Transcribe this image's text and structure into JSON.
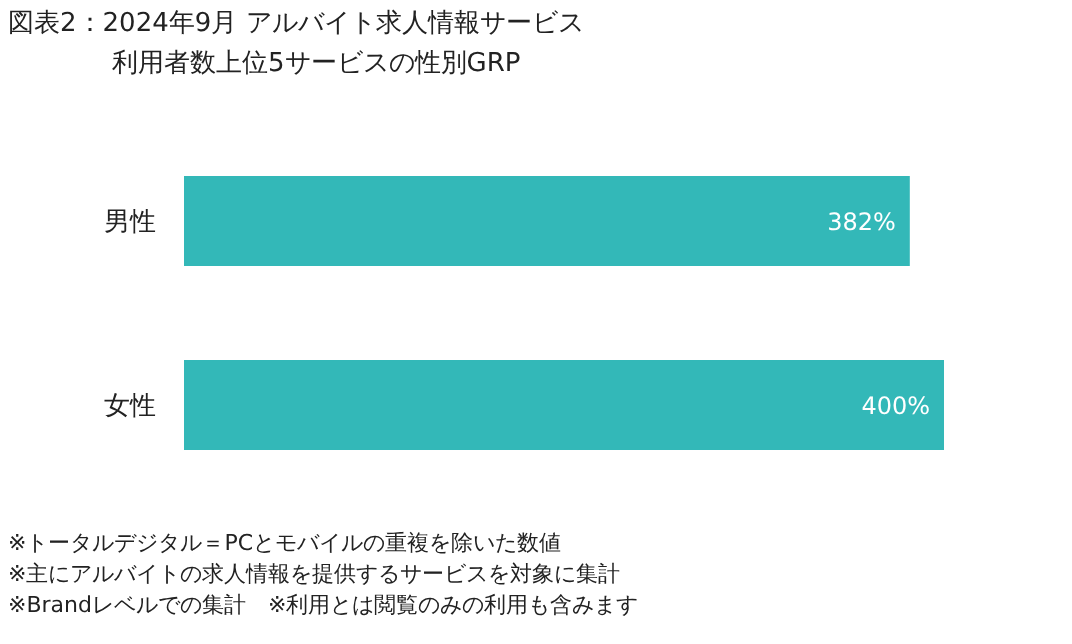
{
  "chart_data": {
    "type": "bar",
    "orientation": "horizontal",
    "title": "図表2：2024年9月 アルバイト求人情報サービス",
    "subtitle": "利用者数上位5サービスの性別GRP",
    "categories": [
      "男性",
      "女性"
    ],
    "values": [
      382,
      400
    ],
    "value_labels": [
      "382%",
      "400%"
    ],
    "color": "#33b8b8",
    "tick_labels": "y",
    "annotations": [
      "※トータルデジタル＝PCとモバイルの重複を除いた数値",
      "※主にアルバイトの求人情報を提供するサービスを対象に集計",
      "※Brandレベルでの集計　※利用とは閲覧のみの利用も含みます"
    ]
  }
}
